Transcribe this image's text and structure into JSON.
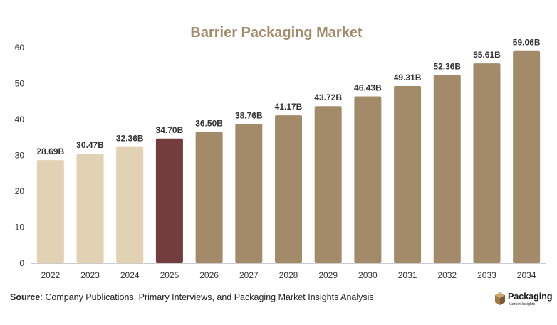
{
  "chart_data": {
    "type": "bar",
    "title": "Barrier Packaging Market",
    "xlabel": "",
    "ylabel": "",
    "categories": [
      "2022",
      "2023",
      "2024",
      "2025",
      "2026",
      "2027",
      "2028",
      "2029",
      "2030",
      "2031",
      "2032",
      "2033",
      "2034"
    ],
    "values": [
      28.69,
      30.47,
      32.36,
      34.7,
      36.5,
      38.76,
      41.17,
      43.72,
      46.43,
      49.31,
      52.36,
      55.61,
      59.06
    ],
    "data_labels": [
      "28.69B",
      "30.47B",
      "32.36B",
      "34.70B",
      "36.50B",
      "38.76B",
      "41.17B",
      "43.72B",
      "46.43B",
      "49.31B",
      "52.36B",
      "55.61B",
      "59.06B"
    ],
    "ylim": [
      0,
      60
    ],
    "yticks": [
      0,
      10,
      20,
      30,
      40,
      50,
      60
    ],
    "grid": false,
    "colors": {
      "historical": "#e2d1b3",
      "current": "#733d3e",
      "forecast": "#a38b6a",
      "title": "#a38b6a"
    },
    "bar_color_groups": [
      "historical",
      "historical",
      "historical",
      "current",
      "forecast",
      "forecast",
      "forecast",
      "forecast",
      "forecast",
      "forecast",
      "forecast",
      "forecast",
      "forecast"
    ]
  },
  "footer": {
    "source_label": "Source",
    "source_text": ": Company Publications, Primary Interviews, and Packaging Market Insights Analysis"
  },
  "logo": {
    "name": "Packaging",
    "subtitle": "Market Insights",
    "icon": "box-icon"
  }
}
